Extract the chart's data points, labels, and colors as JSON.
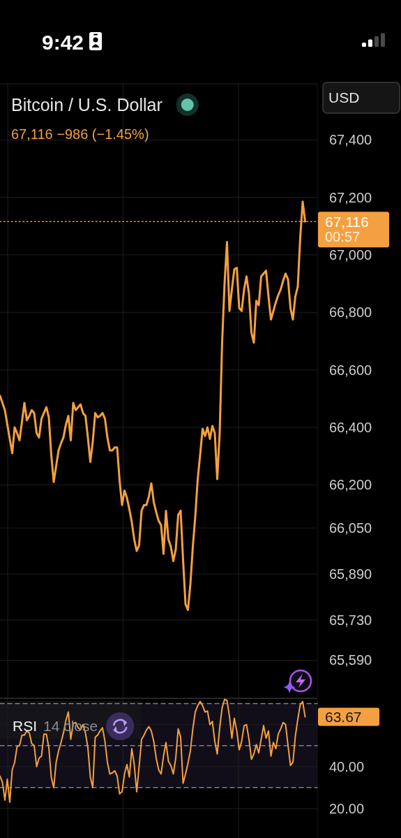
{
  "chart_data": [
    {
      "type": "line",
      "title": "Bitcoin / U.S. Dollar",
      "subtitle": "67,116 −986 (−1.45%)",
      "annotations": [
        "9:42",
        "USD",
        "00:57"
      ],
      "categories": [
        null,
        null,
        null,
        null,
        null,
        null,
        null,
        null,
        null,
        null,
        null,
        null,
        null,
        null,
        null,
        null,
        null,
        null,
        null,
        null,
        null,
        null,
        null,
        null,
        null,
        null,
        null,
        null,
        null,
        null,
        null,
        null,
        null,
        null,
        null,
        null,
        null,
        null,
        null,
        null,
        null,
        null,
        null,
        null,
        null,
        null,
        null,
        null,
        null,
        null,
        null,
        null,
        null,
        null,
        null,
        null,
        null,
        null,
        null,
        null,
        null,
        null,
        null,
        null,
        null,
        null,
        null,
        null,
        null,
        null,
        null,
        null,
        null,
        null,
        null,
        null,
        null,
        null,
        null,
        null,
        null,
        null,
        null,
        null,
        null,
        null,
        null,
        null,
        null,
        null,
        null,
        null,
        null,
        null,
        null,
        null,
        null,
        null,
        null,
        null,
        null,
        null,
        null,
        null,
        null,
        null,
        null,
        null,
        null,
        null,
        null,
        null,
        null,
        null,
        null,
        null,
        null,
        null,
        null,
        null,
        null,
        null,
        null,
        null,
        null,
        null
      ],
      "series": [
        {
          "color": "#f4a040",
          "values": [
            66510,
            66485,
            66460,
            66410,
            66360,
            66310,
            66400,
            66380,
            66355,
            66420,
            66485,
            66425,
            66440,
            66460,
            66450,
            66380,
            66365,
            66430,
            66450,
            66470,
            66435,
            66305,
            66210,
            66265,
            66320,
            66345,
            66365,
            66410,
            66440,
            66355,
            66485,
            66460,
            66470,
            66480,
            66450,
            66440,
            66365,
            66280,
            66350,
            66450,
            66435,
            66440,
            66450,
            66430,
            66365,
            66320,
            66320,
            66330,
            66330,
            66215,
            66130,
            66180,
            66155,
            66115,
            66070,
            66010,
            65970,
            65990,
            66110,
            66130,
            66130,
            66160,
            66205,
            66140,
            66105,
            66075,
            66060,
            65960,
            66110,
            66010,
            65985,
            65935,
            65975,
            66095,
            66110,
            65940,
            65785,
            65765,
            65855,
            65985,
            66090,
            66220,
            66305,
            66395,
            66370,
            66400,
            66360,
            66405,
            66380,
            66220,
            66380,
            66695,
            66900,
            67045,
            66805,
            66880,
            66950,
            66955,
            66815,
            66805,
            66880,
            66925,
            66865,
            66730,
            66695,
            66840,
            66825,
            66925,
            66935,
            66945,
            66855,
            66775,
            66805,
            66835,
            66860,
            66880,
            66910,
            66935,
            66915,
            66815,
            66775,
            66855,
            66890,
            67060,
            67185,
            67116
          ]
        }
      ],
      "ylim": [
        65460,
        67595
      ],
      "yticks": [
        {
          "value": 67400,
          "label": "67,400"
        },
        {
          "value": 67200,
          "label": "67,200"
        },
        {
          "value": 67000,
          "label": "67,000"
        },
        {
          "value": 66800,
          "label": "66,800"
        },
        {
          "value": 66600,
          "label": "66,600"
        },
        {
          "value": 66400,
          "label": "66,400"
        },
        {
          "value": 66200,
          "label": "66,200"
        },
        {
          "value": 66050,
          "label": "66,050"
        },
        {
          "value": 65890,
          "label": "65,890"
        },
        {
          "value": 65730,
          "label": "65,730"
        },
        {
          "value": 65590,
          "label": "65,590"
        }
      ],
      "grid": true,
      "tick_labels": "y",
      "ref_lines": [
        {
          "axis": "y",
          "value": 67116,
          "label": "67,116",
          "color": "#f4a040",
          "line_style": "dotted"
        }
      ]
    },
    {
      "type": "line",
      "title": "RSI",
      "subtitle": "14 close",
      "categories": [
        null,
        null,
        null,
        null,
        null,
        null,
        null,
        null,
        null,
        null,
        null,
        null,
        null,
        null,
        null,
        null,
        null,
        null,
        null,
        null,
        null,
        null,
        null,
        null,
        null,
        null,
        null,
        null,
        null,
        null,
        null,
        null,
        null,
        null,
        null,
        null,
        null,
        null,
        null,
        null,
        null,
        null,
        null,
        null,
        null,
        null,
        null,
        null,
        null,
        null,
        null,
        null,
        null,
        null,
        null,
        null,
        null,
        null,
        null,
        null,
        null,
        null,
        null,
        null,
        null,
        null,
        null,
        null,
        null,
        null,
        null,
        null,
        null,
        null,
        null,
        null,
        null,
        null,
        null,
        null,
        null,
        null,
        null,
        null,
        null,
        null,
        null,
        null,
        null,
        null,
        null,
        null,
        null,
        null,
        null,
        null,
        null,
        null,
        null,
        null,
        null,
        null,
        null,
        null,
        null,
        null,
        null,
        null,
        null,
        null,
        null,
        null,
        null,
        null,
        null,
        null,
        null,
        null,
        null,
        null,
        null,
        null,
        null,
        null,
        null,
        null
      ],
      "series": [
        {
          "color": "#f4a040",
          "values": [
            35.5,
            32.5,
            24,
            34,
            23,
            38.5,
            42,
            49.5,
            50,
            55,
            55,
            57,
            56,
            51,
            50,
            40,
            44,
            45,
            55.5,
            55.5,
            49,
            35,
            30,
            42,
            47.5,
            51.5,
            56,
            62,
            66,
            53,
            60.5,
            61,
            58.5,
            57.5,
            60,
            56,
            49,
            35,
            30,
            54,
            55,
            57,
            58.5,
            52,
            42,
            36.5,
            37,
            38,
            35.5,
            27,
            28,
            36.5,
            41,
            35,
            48.5,
            41,
            28,
            40,
            53,
            55,
            57.5,
            59,
            57,
            52,
            44,
            38.5,
            36.5,
            45,
            51.5,
            42.5,
            40.5,
            36.5,
            44,
            58,
            54,
            32,
            36.5,
            41.5,
            47.5,
            58,
            66,
            69,
            71,
            69,
            66,
            66.5,
            60,
            61.5,
            52,
            46,
            58.5,
            68,
            72,
            71.5,
            64,
            53.5,
            63,
            57,
            48,
            52,
            59.5,
            60,
            53,
            43.5,
            46,
            50.5,
            46.5,
            53,
            59.5,
            53.5,
            57,
            45,
            51.5,
            48.5,
            55.5,
            58,
            61,
            60,
            50,
            40.5,
            42,
            54.5,
            62.5,
            69.5,
            71,
            63.67
          ],
          "value_labels": [
            null,
            null,
            null,
            null,
            null,
            null,
            null,
            null,
            null,
            null,
            null,
            null,
            null,
            null,
            null,
            null,
            null,
            null,
            null,
            null,
            null,
            null,
            null,
            null,
            null,
            null,
            null,
            null,
            null,
            null,
            null,
            null,
            null,
            null,
            null,
            null,
            null,
            null,
            null,
            null,
            null,
            null,
            null,
            null,
            null,
            null,
            null,
            null,
            null,
            null,
            null,
            null,
            null,
            null,
            null,
            null,
            null,
            null,
            null,
            null,
            null,
            null,
            null,
            null,
            null,
            null,
            null,
            null,
            null,
            null,
            null,
            null,
            null,
            null,
            null,
            null,
            null,
            null,
            null,
            null,
            null,
            null,
            null,
            null,
            null,
            null,
            null,
            null,
            null,
            null,
            null,
            null,
            null,
            null,
            null,
            null,
            null,
            null,
            null,
            null,
            null,
            null,
            null,
            null,
            null,
            null,
            null,
            null,
            null,
            null,
            null,
            null,
            null,
            null,
            null,
            null,
            null,
            null,
            null,
            null,
            null,
            null,
            null,
            null,
            null,
            "63.67"
          ]
        }
      ],
      "ylim": [
        6,
        72.5
      ],
      "yticks": [
        {
          "value": 60,
          "label": null
        },
        {
          "value": 40,
          "label": "40.00"
        },
        {
          "value": 20,
          "label": "20.00"
        }
      ],
      "grid": true,
      "tick_labels": "y",
      "ref_lines": [
        {
          "axis": "y",
          "value": 70,
          "color": "#80808a",
          "line_style": "dashed"
        },
        {
          "axis": "y",
          "value": 50,
          "color": "#80808a",
          "line_style": "dashed"
        },
        {
          "axis": "y",
          "value": 30,
          "color": "#80808a",
          "line_style": "dashed"
        }
      ],
      "bands": [
        {
          "axis": "y",
          "from": 30,
          "to": 70,
          "color": "#110e1a"
        }
      ]
    }
  ]
}
